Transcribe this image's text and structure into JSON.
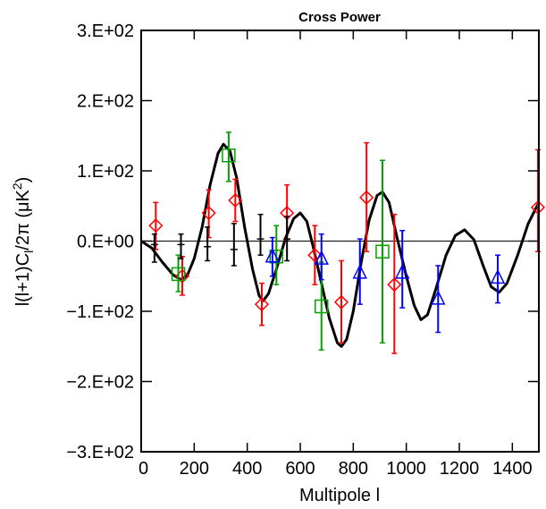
{
  "chart_data": {
    "type": "scatter",
    "title": "Cross Power",
    "xlabel": "Multipole l",
    "ylabel": "l(l+1)C_l/2π (μK²)",
    "ylabel_parts": {
      "main": "l(l+1)C",
      "sub": "l",
      "after": "/2π (μK",
      "sup": "2",
      "close": ")"
    },
    "xlim": [
      0,
      1500
    ],
    "ylim": [
      -300,
      300
    ],
    "x_ticks": [
      0,
      200,
      400,
      600,
      800,
      1000,
      1200,
      1400
    ],
    "x_tick_labels": [
      "0",
      "200",
      "400",
      "600",
      "800",
      "1000",
      "1200",
      "1400"
    ],
    "y_ticks": [
      -300,
      -200,
      -100,
      0,
      100,
      200,
      300
    ],
    "y_tick_labels": [
      "−3.E+02",
      "−2.E+02",
      "−1.E+02",
      "0.E+00",
      "1.E+02",
      "2.E+02",
      "3.E+02"
    ],
    "grid": false,
    "zero_line": 0,
    "series": [
      {
        "marker": "diamond",
        "color": "#ff0000",
        "points": [
          {
            "x": 55,
            "y": 22,
            "lo": -12,
            "hi": 55
          },
          {
            "x": 155,
            "y": -50,
            "lo": -77,
            "hi": -22
          },
          {
            "x": 255,
            "y": 40,
            "lo": 5,
            "hi": 73
          },
          {
            "x": 355,
            "y": 58,
            "lo": 28,
            "hi": 88
          },
          {
            "x": 455,
            "y": -90,
            "lo": -120,
            "hi": -60
          },
          {
            "x": 550,
            "y": 40,
            "lo": 2,
            "hi": 80
          },
          {
            "x": 655,
            "y": -20,
            "lo": -62,
            "hi": 22
          },
          {
            "x": 755,
            "y": -87,
            "lo": -145,
            "hi": -28
          },
          {
            "x": 850,
            "y": 62,
            "lo": -15,
            "hi": 140
          },
          {
            "x": 955,
            "y": -62,
            "lo": -160,
            "hi": 38
          },
          {
            "x": 1500,
            "y": 48,
            "lo": -15,
            "hi": 130
          }
        ]
      },
      {
        "marker": "square",
        "color": "#00a000",
        "points": [
          {
            "x": 140,
            "y": -47,
            "lo": -72,
            "hi": -20
          },
          {
            "x": 330,
            "y": 122,
            "lo": 85,
            "hi": 155
          },
          {
            "x": 510,
            "y": -22,
            "lo": -62,
            "hi": 22
          },
          {
            "x": 680,
            "y": -93,
            "lo": -155,
            "hi": -30
          },
          {
            "x": 910,
            "y": -15,
            "lo": -145,
            "hi": 115
          }
        ]
      },
      {
        "marker": "triangle",
        "color": "#0000ff",
        "points": [
          {
            "x": 495,
            "y": -22,
            "lo": -50,
            "hi": 5
          },
          {
            "x": 680,
            "y": -25,
            "lo": -55,
            "hi": 10
          },
          {
            "x": 825,
            "y": -45,
            "lo": -90,
            "hi": 3
          },
          {
            "x": 985,
            "y": -45,
            "lo": -95,
            "hi": 15
          },
          {
            "x": 1120,
            "y": -82,
            "lo": -130,
            "hi": -35
          },
          {
            "x": 1345,
            "y": -52,
            "lo": -88,
            "hi": -20
          }
        ]
      },
      {
        "marker": "plus",
        "color": "#000000",
        "points": [
          {
            "x": 50,
            "y": -5,
            "lo": -30,
            "hi": 10
          },
          {
            "x": 150,
            "y": -5,
            "lo": -25,
            "hi": 10
          },
          {
            "x": 250,
            "y": -8,
            "lo": -28,
            "hi": 20
          },
          {
            "x": 350,
            "y": -12,
            "lo": -35,
            "hi": 25
          },
          {
            "x": 450,
            "y": 3,
            "lo": -20,
            "hi": 38
          },
          {
            "x": 550,
            "y": 3,
            "lo": -28,
            "hi": 35
          }
        ]
      }
    ],
    "model_curve": {
      "color": "#000000",
      "points": [
        [
          0,
          0
        ],
        [
          40,
          -10
        ],
        [
          80,
          -30
        ],
        [
          120,
          -48
        ],
        [
          150,
          -55
        ],
        [
          175,
          -48
        ],
        [
          200,
          -25
        ],
        [
          230,
          20
        ],
        [
          260,
          80
        ],
        [
          290,
          125
        ],
        [
          310,
          138
        ],
        [
          335,
          128
        ],
        [
          360,
          90
        ],
        [
          390,
          20
        ],
        [
          420,
          -40
        ],
        [
          445,
          -78
        ],
        [
          460,
          -85
        ],
        [
          480,
          -75
        ],
        [
          510,
          -40
        ],
        [
          545,
          5
        ],
        [
          575,
          32
        ],
        [
          600,
          40
        ],
        [
          625,
          28
        ],
        [
          650,
          -10
        ],
        [
          680,
          -60
        ],
        [
          710,
          -110
        ],
        [
          740,
          -145
        ],
        [
          755,
          -150
        ],
        [
          775,
          -140
        ],
        [
          800,
          -100
        ],
        [
          830,
          -30
        ],
        [
          860,
          30
        ],
        [
          890,
          65
        ],
        [
          910,
          70
        ],
        [
          935,
          55
        ],
        [
          965,
          5
        ],
        [
          1000,
          -50
        ],
        [
          1030,
          -92
        ],
        [
          1055,
          -112
        ],
        [
          1080,
          -105
        ],
        [
          1110,
          -70
        ],
        [
          1150,
          -20
        ],
        [
          1185,
          8
        ],
        [
          1220,
          16
        ],
        [
          1255,
          2
        ],
        [
          1290,
          -35
        ],
        [
          1320,
          -65
        ],
        [
          1350,
          -73
        ],
        [
          1380,
          -60
        ],
        [
          1420,
          -20
        ],
        [
          1460,
          25
        ],
        [
          1500,
          55
        ]
      ]
    }
  }
}
